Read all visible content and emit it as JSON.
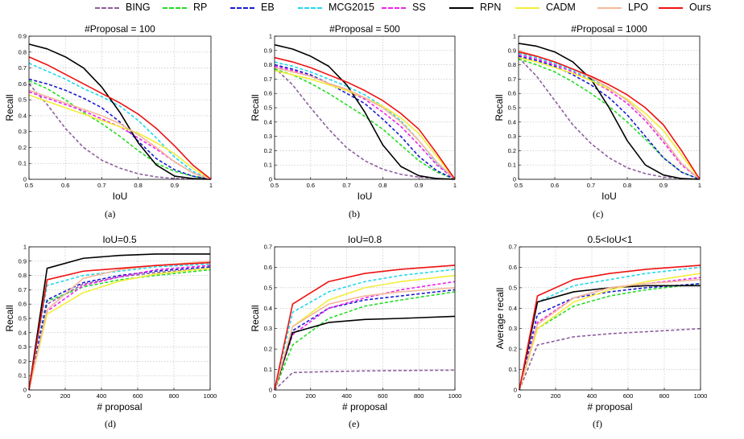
{
  "legend": [
    {
      "name": "BING",
      "color": "#8e5e9e",
      "dash": true
    },
    {
      "name": "RP",
      "color": "#22dd22",
      "dash": true
    },
    {
      "name": "EB",
      "color": "#1a1ad0",
      "dash": true
    },
    {
      "name": "MCG2015",
      "color": "#22d8ee",
      "dash": true
    },
    {
      "name": "SS",
      "color": "#ee22ee",
      "dash": true
    },
    {
      "name": "RPN",
      "color": "#000000",
      "dash": false
    },
    {
      "name": "CADM",
      "color": "#f2ee3a",
      "dash": false
    },
    {
      "name": "LPO",
      "color": "#f4b899",
      "dash": false
    },
    {
      "name": "Ours",
      "color": "#ee1111",
      "dash": false
    }
  ],
  "chart_data": [
    {
      "type": "line",
      "caption": "(a)",
      "title": "#Proposal = 100",
      "xlabel": "IoU",
      "ylabel": "Recall",
      "xlim": [
        0.5,
        1
      ],
      "ylim": [
        0,
        0.9
      ],
      "xticks": [
        "0.5",
        "0.6",
        "0.7",
        "0.8",
        "0.9",
        "1"
      ],
      "yticks": [
        "0",
        "0.1",
        "0.2",
        "0.3",
        "0.4",
        "0.5",
        "0.6",
        "0.7",
        "0.8",
        "0.9"
      ],
      "x": [
        0.5,
        0.55,
        0.6,
        0.65,
        0.7,
        0.75,
        0.8,
        0.85,
        0.9,
        0.95,
        1.0
      ],
      "series": [
        {
          "name": "BING",
          "values": [
            0.6,
            0.47,
            0.32,
            0.2,
            0.12,
            0.07,
            0.035,
            0.015,
            0.005,
            0.002,
            0
          ]
        },
        {
          "name": "RP",
          "values": [
            0.62,
            0.57,
            0.5,
            0.42,
            0.35,
            0.27,
            0.18,
            0.1,
            0.05,
            0.02,
            0
          ]
        },
        {
          "name": "EB",
          "values": [
            0.63,
            0.6,
            0.56,
            0.51,
            0.45,
            0.36,
            0.24,
            0.13,
            0.06,
            0.02,
            0
          ]
        },
        {
          "name": "MCG2015",
          "values": [
            0.73,
            0.68,
            0.63,
            0.57,
            0.52,
            0.46,
            0.37,
            0.26,
            0.14,
            0.05,
            0
          ]
        },
        {
          "name": "SS",
          "values": [
            0.55,
            0.51,
            0.47,
            0.43,
            0.38,
            0.33,
            0.26,
            0.19,
            0.11,
            0.04,
            0
          ]
        },
        {
          "name": "RPN",
          "values": [
            0.85,
            0.82,
            0.77,
            0.7,
            0.58,
            0.42,
            0.23,
            0.09,
            0.02,
            0.005,
            0
          ]
        },
        {
          "name": "CADM",
          "values": [
            0.53,
            0.49,
            0.45,
            0.41,
            0.37,
            0.33,
            0.29,
            0.23,
            0.16,
            0.07,
            0
          ]
        },
        {
          "name": "LPO",
          "values": [
            0.56,
            0.52,
            0.48,
            0.44,
            0.4,
            0.35,
            0.28,
            0.2,
            0.11,
            0.04,
            0
          ]
        },
        {
          "name": "Ours",
          "values": [
            0.77,
            0.72,
            0.66,
            0.6,
            0.54,
            0.48,
            0.41,
            0.32,
            0.21,
            0.09,
            0
          ]
        }
      ]
    },
    {
      "type": "line",
      "caption": "(b)",
      "title": "#Proposal = 500",
      "xlabel": "IoU",
      "ylabel": "Recall",
      "xlim": [
        0.5,
        1
      ],
      "ylim": [
        0,
        1
      ],
      "xticks": [
        "0.5",
        "0.6",
        "0.7",
        "0.8",
        "0.9",
        "1"
      ],
      "yticks": [
        "0",
        "0.1",
        "0.2",
        "0.3",
        "0.4",
        "0.5",
        "0.6",
        "0.7",
        "0.8",
        "0.9",
        "1"
      ],
      "x": [
        0.5,
        0.55,
        0.6,
        0.65,
        0.7,
        0.75,
        0.8,
        0.85,
        0.9,
        0.95,
        1.0
      ],
      "series": [
        {
          "name": "BING",
          "values": [
            0.78,
            0.66,
            0.5,
            0.35,
            0.22,
            0.13,
            0.07,
            0.035,
            0.015,
            0.005,
            0
          ]
        },
        {
          "name": "RP",
          "values": [
            0.77,
            0.73,
            0.67,
            0.6,
            0.52,
            0.44,
            0.35,
            0.24,
            0.13,
            0.05,
            0
          ]
        },
        {
          "name": "EB",
          "values": [
            0.8,
            0.77,
            0.73,
            0.67,
            0.6,
            0.53,
            0.42,
            0.3,
            0.16,
            0.06,
            0
          ]
        },
        {
          "name": "MCG2015",
          "values": [
            0.82,
            0.79,
            0.75,
            0.7,
            0.65,
            0.59,
            0.51,
            0.41,
            0.27,
            0.11,
            0
          ]
        },
        {
          "name": "SS",
          "values": [
            0.79,
            0.76,
            0.72,
            0.67,
            0.62,
            0.56,
            0.47,
            0.37,
            0.24,
            0.1,
            0
          ]
        },
        {
          "name": "RPN",
          "values": [
            0.94,
            0.91,
            0.86,
            0.79,
            0.66,
            0.47,
            0.24,
            0.09,
            0.025,
            0.005,
            0
          ]
        },
        {
          "name": "CADM",
          "values": [
            0.76,
            0.73,
            0.7,
            0.66,
            0.62,
            0.57,
            0.51,
            0.43,
            0.32,
            0.16,
            0
          ]
        },
        {
          "name": "LPO",
          "values": [
            0.78,
            0.75,
            0.72,
            0.67,
            0.63,
            0.57,
            0.5,
            0.4,
            0.27,
            0.12,
            0
          ]
        },
        {
          "name": "Ours",
          "values": [
            0.85,
            0.82,
            0.78,
            0.73,
            0.68,
            0.62,
            0.55,
            0.46,
            0.35,
            0.18,
            0
          ]
        }
      ]
    },
    {
      "type": "line",
      "caption": "(c)",
      "title": "#Proposal = 1000",
      "xlabel": "IoU",
      "ylabel": "Recall",
      "xlim": [
        0.5,
        1
      ],
      "ylim": [
        0,
        1
      ],
      "xticks": [
        "0.5",
        "0.6",
        "0.7",
        "0.8",
        "0.9",
        "1"
      ],
      "yticks": [
        "0",
        "0.1",
        "0.2",
        "0.3",
        "0.4",
        "0.5",
        "0.6",
        "0.7",
        "0.8",
        "0.9",
        "1"
      ],
      "x": [
        0.5,
        0.55,
        0.6,
        0.65,
        0.7,
        0.75,
        0.8,
        0.85,
        0.9,
        0.95,
        1.0
      ],
      "series": [
        {
          "name": "BING",
          "values": [
            0.85,
            0.72,
            0.55,
            0.38,
            0.25,
            0.15,
            0.08,
            0.04,
            0.015,
            0.005,
            0
          ]
        },
        {
          "name": "RP",
          "values": [
            0.84,
            0.8,
            0.75,
            0.68,
            0.6,
            0.51,
            0.4,
            0.28,
            0.15,
            0.05,
            0
          ]
        },
        {
          "name": "EB",
          "values": [
            0.86,
            0.83,
            0.79,
            0.73,
            0.66,
            0.57,
            0.45,
            0.3,
            0.15,
            0.05,
            0
          ]
        },
        {
          "name": "MCG2015",
          "values": [
            0.88,
            0.85,
            0.81,
            0.76,
            0.7,
            0.64,
            0.55,
            0.43,
            0.28,
            0.11,
            0
          ]
        },
        {
          "name": "SS",
          "values": [
            0.87,
            0.84,
            0.8,
            0.75,
            0.69,
            0.62,
            0.53,
            0.41,
            0.26,
            0.1,
            0
          ]
        },
        {
          "name": "RPN",
          "values": [
            0.95,
            0.93,
            0.89,
            0.82,
            0.7,
            0.5,
            0.27,
            0.1,
            0.03,
            0.005,
            0
          ]
        },
        {
          "name": "CADM",
          "values": [
            0.85,
            0.82,
            0.78,
            0.74,
            0.69,
            0.63,
            0.56,
            0.46,
            0.34,
            0.17,
            0
          ]
        },
        {
          "name": "LPO",
          "values": [
            0.9,
            0.86,
            0.82,
            0.77,
            0.71,
            0.64,
            0.55,
            0.43,
            0.28,
            0.11,
            0
          ]
        },
        {
          "name": "Ours",
          "values": [
            0.89,
            0.86,
            0.82,
            0.77,
            0.72,
            0.66,
            0.59,
            0.5,
            0.38,
            0.2,
            0
          ]
        }
      ]
    },
    {
      "type": "line",
      "caption": "(d)",
      "title": "IoU=0.5",
      "xlabel": "# proposal",
      "ylabel": "Recall",
      "xlim": [
        0,
        1000
      ],
      "ylim": [
        0,
        1
      ],
      "xticks": [
        "0",
        "200",
        "400",
        "600",
        "800",
        "1000"
      ],
      "yticks": [
        "0",
        "0.1",
        "0.2",
        "0.3",
        "0.4",
        "0.5",
        "0.6",
        "0.7",
        "0.8",
        "0.9",
        "1"
      ],
      "x": [
        0,
        100,
        300,
        500,
        700,
        1000
      ],
      "series": [
        {
          "name": "BING",
          "values": [
            0,
            0.6,
            0.74,
            0.79,
            0.82,
            0.85
          ]
        },
        {
          "name": "RP",
          "values": [
            0,
            0.62,
            0.72,
            0.77,
            0.8,
            0.84
          ]
        },
        {
          "name": "EB",
          "values": [
            0,
            0.63,
            0.75,
            0.8,
            0.83,
            0.86
          ]
        },
        {
          "name": "MCG2015",
          "values": [
            0,
            0.73,
            0.8,
            0.83,
            0.86,
            0.88
          ]
        },
        {
          "name": "SS",
          "values": [
            0,
            0.55,
            0.73,
            0.79,
            0.84,
            0.87
          ]
        },
        {
          "name": "RPN",
          "values": [
            0,
            0.85,
            0.92,
            0.94,
            0.95,
            0.95
          ]
        },
        {
          "name": "CADM",
          "values": [
            0,
            0.53,
            0.68,
            0.76,
            0.81,
            0.85
          ]
        },
        {
          "name": "LPO",
          "values": [
            0,
            0.56,
            0.78,
            0.84,
            0.87,
            0.9
          ]
        },
        {
          "name": "Ours",
          "values": [
            0,
            0.77,
            0.83,
            0.85,
            0.87,
            0.89
          ]
        }
      ]
    },
    {
      "type": "line",
      "caption": "(e)",
      "title": "IoU=0.8",
      "xlabel": "# proposal",
      "ylabel": "Recall",
      "xlim": [
        0,
        1000
      ],
      "ylim": [
        0,
        0.7
      ],
      "xticks": [
        "0",
        "200",
        "400",
        "600",
        "800",
        "1000"
      ],
      "yticks": [
        "0",
        "0.1",
        "0.2",
        "0.3",
        "0.4",
        "0.5",
        "0.6",
        "0.7"
      ],
      "x": [
        0,
        100,
        300,
        500,
        700,
        1000
      ],
      "series": [
        {
          "name": "BING",
          "values": [
            0,
            0.085,
            0.09,
            0.093,
            0.095,
            0.097
          ]
        },
        {
          "name": "RP",
          "values": [
            0,
            0.22,
            0.35,
            0.41,
            0.44,
            0.48
          ]
        },
        {
          "name": "EB",
          "values": [
            0,
            0.29,
            0.4,
            0.44,
            0.46,
            0.49
          ]
        },
        {
          "name": "MCG2015",
          "values": [
            0,
            0.38,
            0.48,
            0.53,
            0.56,
            0.59
          ]
        },
        {
          "name": "SS",
          "values": [
            0,
            0.27,
            0.4,
            0.45,
            0.49,
            0.53
          ]
        },
        {
          "name": "RPN",
          "values": [
            0,
            0.28,
            0.33,
            0.345,
            0.35,
            0.36
          ]
        },
        {
          "name": "CADM",
          "values": [
            0,
            0.31,
            0.44,
            0.5,
            0.53,
            0.56
          ]
        },
        {
          "name": "LPO",
          "values": [
            0,
            0.31,
            0.42,
            0.46,
            0.48,
            0.5
          ]
        },
        {
          "name": "Ours",
          "values": [
            0,
            0.42,
            0.53,
            0.57,
            0.59,
            0.61
          ]
        }
      ]
    },
    {
      "type": "line",
      "caption": "(f)",
      "title": "0.5<IoU<1",
      "xlabel": "# proposal",
      "ylabel": "Average recall",
      "xlim": [
        0,
        1000
      ],
      "ylim": [
        0,
        0.7
      ],
      "xticks": [
        "0",
        "200",
        "400",
        "600",
        "800",
        "1000"
      ],
      "yticks": [
        "0",
        "0.1",
        "0.2",
        "0.3",
        "0.4",
        "0.5",
        "0.6",
        "0.7"
      ],
      "x": [
        0,
        100,
        300,
        500,
        700,
        1000
      ],
      "series": [
        {
          "name": "BING",
          "values": [
            0,
            0.22,
            0.26,
            0.275,
            0.285,
            0.3
          ]
        },
        {
          "name": "RP",
          "values": [
            0,
            0.3,
            0.41,
            0.46,
            0.49,
            0.52
          ]
        },
        {
          "name": "EB",
          "values": [
            0,
            0.37,
            0.45,
            0.48,
            0.5,
            0.52
          ]
        },
        {
          "name": "MCG2015",
          "values": [
            0,
            0.43,
            0.51,
            0.54,
            0.57,
            0.6
          ]
        },
        {
          "name": "SS",
          "values": [
            0,
            0.33,
            0.45,
            0.5,
            0.52,
            0.55
          ]
        },
        {
          "name": "RPN",
          "values": [
            0,
            0.43,
            0.48,
            0.5,
            0.51,
            0.51
          ]
        },
        {
          "name": "CADM",
          "values": [
            0,
            0.3,
            0.43,
            0.49,
            0.53,
            0.57
          ]
        },
        {
          "name": "LPO",
          "values": [
            0,
            0.32,
            0.45,
            0.5,
            0.52,
            0.54
          ]
        },
        {
          "name": "Ours",
          "values": [
            0,
            0.46,
            0.54,
            0.57,
            0.59,
            0.61
          ]
        }
      ]
    }
  ]
}
